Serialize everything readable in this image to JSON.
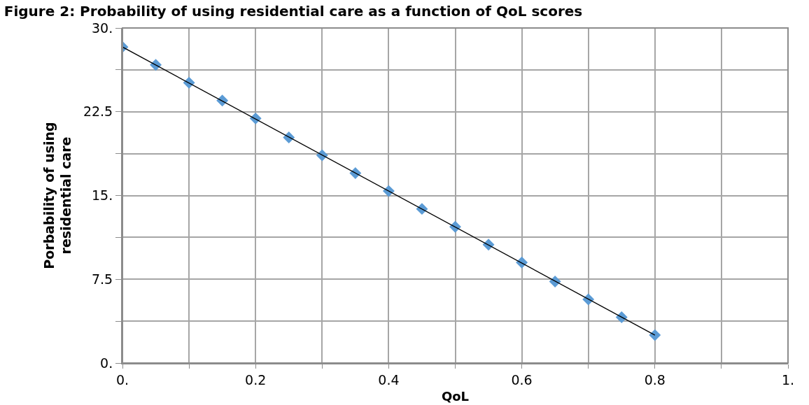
{
  "chart_data": {
    "type": "scatter",
    "title": "Figure 2: Probability of using residential care as a function of QoL scores",
    "xlabel": "QoL",
    "ylabel": "Porbability of using\nresidential care",
    "x": [
      0,
      0.05,
      0.1,
      0.15,
      0.2,
      0.25,
      0.3,
      0.35,
      0.4,
      0.45,
      0.5,
      0.55,
      0.6,
      0.65,
      0.7,
      0.75,
      0.8
    ],
    "series": [
      {
        "color": "#5b9bd5",
        "marker": "diamond",
        "values": [
          28.3,
          26.7,
          25.1,
          23.5,
          21.9,
          20.2,
          18.6,
          17.0,
          15.4,
          13.8,
          12.2,
          10.6,
          9.0,
          7.3,
          5.7,
          4.1,
          2.5
        ]
      },
      {
        "type": "line",
        "color": "#000000",
        "marker": "none",
        "line_style": "solid",
        "x": [
          0,
          0.8
        ],
        "values": [
          28.3,
          2.5
        ]
      }
    ],
    "xlim": [
      0,
      1
    ],
    "ylim": [
      0,
      30
    ],
    "xticks": [
      {
        "value": 0,
        "label": "0."
      },
      {
        "value": 0.1,
        "label": null
      },
      0.2,
      {
        "value": 0.3,
        "label": null
      },
      0.4,
      {
        "value": 0.5,
        "label": null
      },
      0.6,
      {
        "value": 0.7,
        "label": null
      },
      0.8,
      {
        "value": 0.9,
        "label": null
      },
      {
        "value": 1,
        "label": "1."
      }
    ],
    "yticks": [
      {
        "value": 0,
        "label": "0."
      },
      {
        "value": 3.75,
        "label": null
      },
      7.5,
      {
        "value": 11.25,
        "label": null
      },
      {
        "value": 15,
        "label": "15."
      },
      {
        "value": 18.75,
        "label": null
      },
      22.5,
      {
        "value": 26.25,
        "label": null
      },
      {
        "value": 30,
        "label": "30."
      }
    ],
    "grid": true
  }
}
